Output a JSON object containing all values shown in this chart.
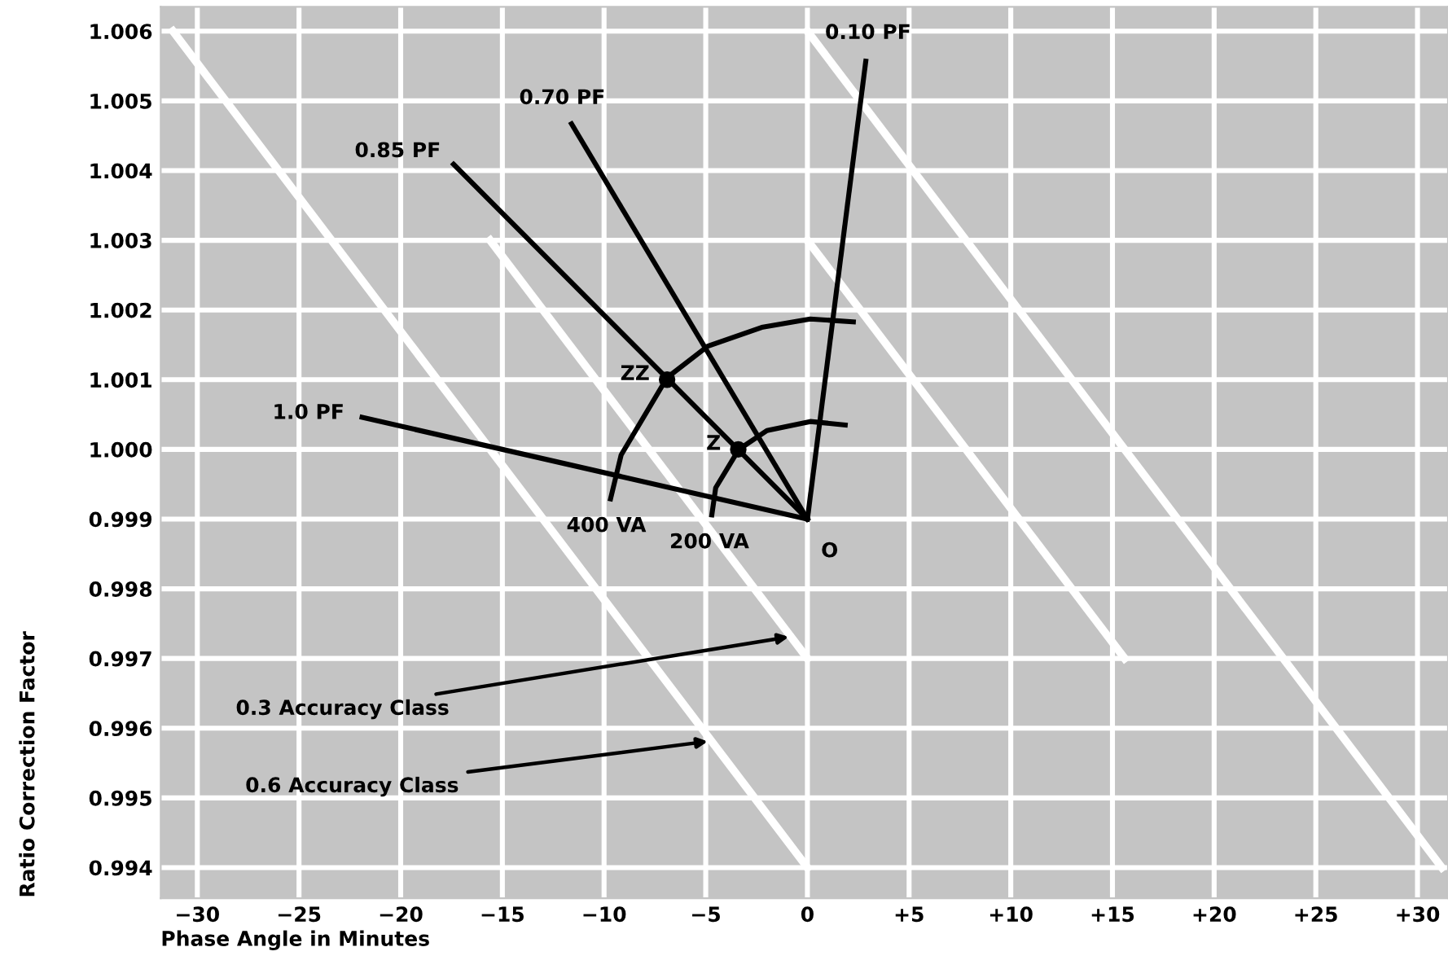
{
  "chart_data": {
    "type": "line",
    "xlabel": "Phase Angle in Minutes",
    "ylabel": "Ratio Correction Factor",
    "xlim": [
      -31.8,
      31.5
    ],
    "ylim": [
      0.99356,
      1.00635
    ],
    "xticks": [
      {
        "value": -30,
        "label": "−30"
      },
      {
        "value": -25,
        "label": "−25"
      },
      {
        "value": -20,
        "label": "−20"
      },
      {
        "value": -15,
        "label": "−15"
      },
      {
        "value": -10,
        "label": "−10"
      },
      {
        "value": -5,
        "label": "−5"
      },
      0,
      {
        "value": 5,
        "label": "+5"
      },
      {
        "value": 10,
        "label": "+10"
      },
      {
        "value": 15,
        "label": "+15"
      },
      {
        "value": 20,
        "label": "+20"
      },
      {
        "value": 25,
        "label": "+25"
      },
      {
        "value": 30,
        "label": "+30"
      }
    ],
    "yticks": [
      0.994,
      0.995,
      0.996,
      0.997,
      0.998,
      0.999,
      {
        "value": 1.0,
        "label": "1.000"
      },
      1.001,
      1.002,
      1.003,
      1.004,
      1.005,
      1.006
    ],
    "grid": true,
    "legend": false,
    "marker": "none",
    "line_style": "solid",
    "series": [
      {
        "color": "#ffffff",
        "x": [
          -31.2,
          0
        ],
        "values": [
          1.006,
          0.994
        ]
      },
      {
        "color": "#ffffff",
        "x": [
          0,
          31.2
        ],
        "values": [
          1.006,
          0.994
        ]
      },
      {
        "color": "#ffffff",
        "x": [
          -15.6,
          0
        ],
        "values": [
          1.003,
          0.997
        ]
      },
      {
        "color": "#ffffff",
        "x": [
          0,
          15.6
        ],
        "values": [
          1.003,
          0.997
        ]
      },
      {
        "name": "1.0 PF",
        "color": "#000000",
        "x": [
          -21.9,
          0
        ],
        "values": [
          1.00046,
          0.999
        ]
      },
      {
        "name": "0.85 PF",
        "color": "#000000",
        "x": [
          -17.4,
          0
        ],
        "values": [
          1.00409,
          0.999
        ]
      },
      {
        "name": "0.70 PF",
        "color": "#000000",
        "x": [
          -11.6,
          0
        ],
        "values": [
          1.00467,
          0.999
        ]
      },
      {
        "name": "0.10 PF",
        "color": "#000000",
        "x": [
          2.87,
          0
        ],
        "values": [
          1.00557,
          0.999
        ]
      },
      {
        "name": "400 VA",
        "color": "#000000",
        "x": [
          -9.68,
          -9.16,
          -6.9,
          -4.9,
          -2.25,
          0.14,
          2.26
        ],
        "values": [
          0.99929,
          0.99992,
          1.00103,
          1.00148,
          1.00175,
          1.00187,
          1.00183
        ]
      },
      {
        "name": "200 VA",
        "color": "#000000",
        "x": [
          -4.7,
          -4.51,
          -3.37,
          -1.99,
          0.14,
          1.86
        ],
        "values": [
          0.99906,
          0.99945,
          1.0,
          1.00027,
          1.0004,
          1.00035
        ]
      },
      {
        "name": "ZZ",
        "type": "scatter",
        "marker": "circle",
        "color": "#000000",
        "x": [
          -6.9
        ],
        "values": [
          1.001
        ]
      },
      {
        "name": "Z",
        "type": "scatter",
        "marker": "circle",
        "color": "#000000",
        "x": [
          -3.4
        ],
        "values": [
          1.0
        ]
      }
    ],
    "annotations": [
      {
        "text": "O",
        "x": 0,
        "y": 0.999
      },
      {
        "text": "0.3 Accuracy Class",
        "x": -0.92,
        "y": 0.99731
      },
      {
        "text": "0.6 Accuracy Class",
        "x": -4.9,
        "y": 0.99581
      }
    ]
  }
}
